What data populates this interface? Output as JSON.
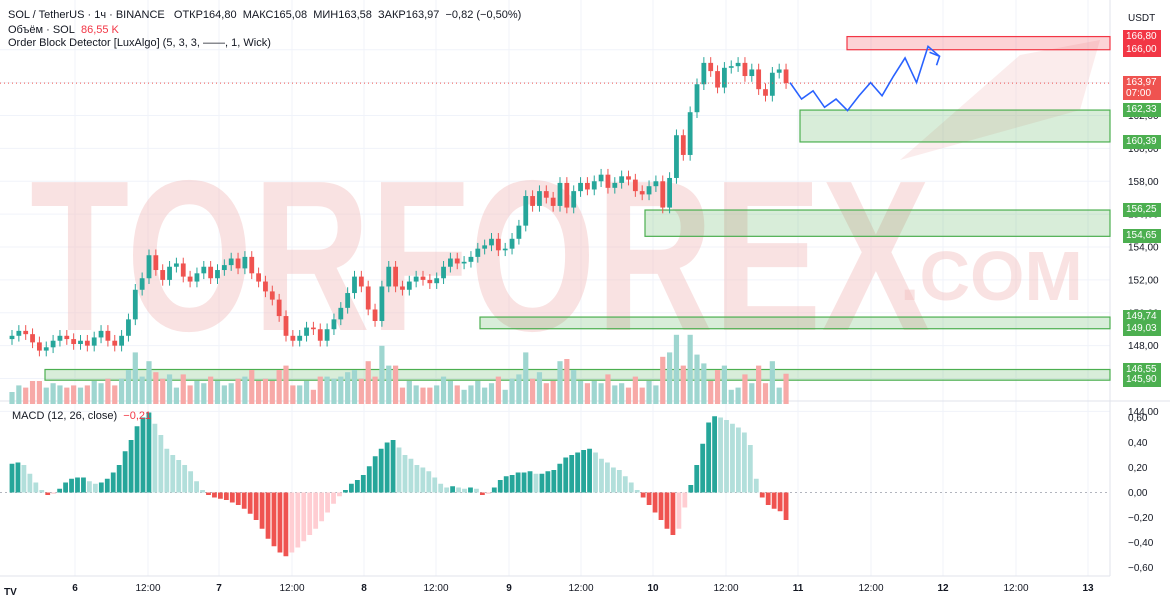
{
  "header": {
    "symbol": "SOL / TetherUS · 1ч · BINANCE",
    "open": "ОТКР164,80",
    "high": "МАКС165,08",
    "low": "МИН163,58",
    "close": "ЗАКР163,97",
    "change": "−0,82 (−0,50%)",
    "volume_label": "Объём · SOL",
    "volume_value": "86,55 K",
    "indicator": "Order Block Detector [LuxAlgo] (5, 3, 3, ——, 1, Wick)",
    "currency": "USDT"
  },
  "macd": {
    "label": "MACD (12, 26, close)",
    "value": "−0,21"
  },
  "watermark": {
    "line1": "TORFOREX",
    "line2": ".COM"
  },
  "tv_logo": "TV",
  "colors": {
    "up": "#26a69a",
    "down": "#ef5350",
    "zone_green": "#4caf50",
    "zone_red": "#f23645",
    "forecast": "#2962ff",
    "watermark": "#f3c0bf"
  },
  "chart_data": [
    {
      "type": "candlestick",
      "name": "price",
      "ylim": [
        143.6,
        167.2
      ],
      "y_ticks": [
        "144,00",
        "146,00",
        "148,00",
        "150,00",
        "152,00",
        "154,00",
        "156,00",
        "158,00",
        "160,00",
        "162,00",
        "164,00",
        "166,00"
      ],
      "x_ticks": [
        "6",
        "12:00",
        "7",
        "12:00",
        "8",
        "12:00",
        "9",
        "12:00",
        "10",
        "12:00",
        "11",
        "12:00",
        "12",
        "12:00",
        "13"
      ],
      "candles_hint": "approx. 120 hourly candles rising from ~148 to ~164",
      "closes": [
        148.6,
        148.9,
        148.7,
        148.2,
        147.7,
        147.9,
        148.3,
        148.6,
        148.4,
        148.1,
        148.3,
        148.0,
        148.5,
        148.9,
        148.3,
        148.0,
        148.6,
        149.6,
        151.4,
        152.1,
        153.5,
        152.6,
        152.0,
        152.8,
        153.0,
        152.2,
        151.9,
        152.4,
        152.8,
        152.1,
        152.6,
        152.9,
        153.3,
        152.7,
        153.4,
        152.4,
        151.9,
        151.3,
        150.8,
        149.8,
        148.6,
        148.3,
        148.6,
        149.1,
        149.0,
        148.3,
        149.0,
        149.6,
        150.3,
        151.2,
        152.2,
        151.6,
        150.2,
        149.5,
        151.6,
        152.8,
        151.6,
        151.4,
        151.9,
        152.2,
        152.0,
        151.8,
        152.1,
        152.8,
        153.3,
        153.0,
        153.1,
        153.4,
        153.9,
        154.1,
        154.5,
        153.8,
        153.9,
        154.5,
        155.3,
        157.1,
        156.5,
        157.4,
        157.0,
        156.5,
        157.9,
        156.4,
        157.4,
        157.9,
        157.5,
        158.0,
        158.4,
        157.6,
        157.9,
        158.3,
        158.1,
        157.4,
        157.2,
        157.7,
        158.0,
        156.4,
        158.2,
        160.8,
        159.6,
        162.2,
        163.9,
        165.2,
        164.7,
        163.7,
        164.9,
        165.0,
        165.2,
        164.4,
        164.8,
        163.6,
        163.2,
        164.6,
        164.8,
        163.97
      ],
      "price_tags": [
        {
          "label": "166,80",
          "kind": "zone_red"
        },
        {
          "label": "166,00",
          "kind": "zone_red"
        },
        {
          "label": "163,97",
          "kind": "last",
          "sub": "07:00"
        },
        {
          "label": "162,33",
          "kind": "zone_green"
        },
        {
          "label": "160,39",
          "kind": "zone_green"
        },
        {
          "label": "156,25",
          "kind": "zone_green"
        },
        {
          "label": "154,65",
          "kind": "zone_green"
        },
        {
          "label": "149,74",
          "kind": "zone_green"
        },
        {
          "label": "149,03",
          "kind": "zone_green"
        },
        {
          "label": "146,55",
          "kind": "zone_green"
        },
        {
          "label": "145,90",
          "kind": "zone_green"
        }
      ],
      "order_blocks": [
        {
          "type": "bearish",
          "top": 166.8,
          "bottom": 166.0
        },
        {
          "type": "bullish",
          "top": 162.33,
          "bottom": 160.39
        },
        {
          "type": "bullish",
          "top": 156.25,
          "bottom": 154.65
        },
        {
          "type": "bullish",
          "top": 149.74,
          "bottom": 149.03
        },
        {
          "type": "bullish",
          "top": 146.55,
          "bottom": 145.9
        }
      ],
      "forecast_path": [
        164.0,
        163.0,
        163.5,
        162.5,
        163.0,
        162.3,
        163.2,
        164.0,
        163.2,
        164.4,
        165.5,
        164.0,
        166.2,
        165.6
      ]
    },
    {
      "type": "bar",
      "name": "MACD",
      "ylim": [
        -0.66,
        0.66
      ],
      "y_ticks": [
        "0,60",
        "0,40",
        "0,20",
        "0,00",
        "−0,20",
        "−0,40",
        "−0,60"
      ],
      "values": [
        0.23,
        0.24,
        0.22,
        0.15,
        0.08,
        0.02,
        -0.02,
        -0.01,
        0.03,
        0.08,
        0.11,
        0.12,
        0.12,
        0.09,
        0.07,
        0.08,
        0.11,
        0.16,
        0.22,
        0.33,
        0.42,
        0.53,
        0.6,
        0.64,
        0.55,
        0.46,
        0.35,
        0.3,
        0.26,
        0.22,
        0.17,
        0.09,
        0.02,
        -0.02,
        -0.04,
        -0.05,
        -0.06,
        -0.08,
        -0.1,
        -0.13,
        -0.17,
        -0.22,
        -0.29,
        -0.37,
        -0.43,
        -0.48,
        -0.51,
        -0.48,
        -0.44,
        -0.39,
        -0.34,
        -0.29,
        -0.23,
        -0.16,
        -0.09,
        -0.03,
        0.02,
        0.07,
        0.1,
        0.14,
        0.21,
        0.29,
        0.35,
        0.4,
        0.42,
        0.36,
        0.3,
        0.27,
        0.22,
        0.2,
        0.17,
        0.12,
        0.07,
        0.04,
        0.05,
        0.04,
        0.03,
        0.04,
        0.03,
        -0.02,
        -0.01,
        0.04,
        0.1,
        0.13,
        0.14,
        0.16,
        0.16,
        0.17,
        0.15,
        0.15,
        0.17,
        0.18,
        0.23,
        0.28,
        0.3,
        0.32,
        0.34,
        0.35,
        0.32,
        0.27,
        0.24,
        0.2,
        0.18,
        0.13,
        0.08,
        0.02,
        -0.04,
        -0.1,
        -0.16,
        -0.22,
        -0.29,
        -0.34,
        -0.29,
        -0.12,
        0.06,
        0.22,
        0.39,
        0.56,
        0.61,
        0.6,
        0.58,
        0.55,
        0.52,
        0.48,
        0.38,
        0.11,
        -0.04,
        -0.1,
        -0.13,
        -0.15,
        -0.22
      ]
    }
  ]
}
